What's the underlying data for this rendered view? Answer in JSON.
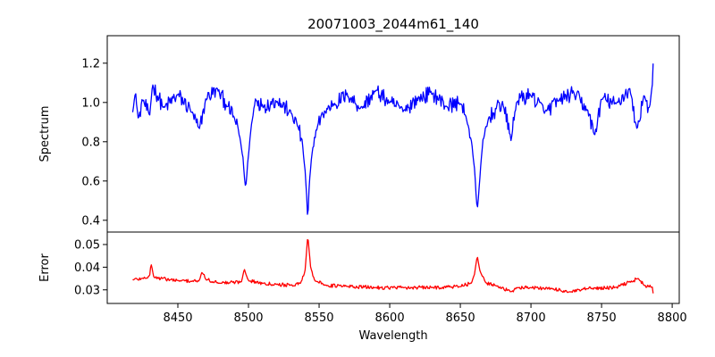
{
  "chart_data": [
    {
      "type": "line",
      "title": "20071003_2044m61_140",
      "ylabel": "Spectrum",
      "xlim": [
        8400,
        8805
      ],
      "ylim": [
        0.34,
        1.34
      ],
      "yticks": [
        0.4,
        0.6,
        0.8,
        1.0,
        1.2
      ],
      "ytick_labels": [
        "0.4",
        "0.6",
        "0.8",
        "1.0",
        "1.2"
      ],
      "grid": false,
      "series": [
        {
          "color": "#0000ff",
          "baseline": 1.0,
          "noise": 0.04,
          "x_range": [
            8418,
            8787
          ],
          "points": [
            [
              8418,
              0.96
            ],
            [
              8420,
              1.05
            ],
            [
              8422,
              0.91
            ],
            [
              8425,
              1.02
            ],
            [
              8430,
              0.93
            ],
            [
              8432,
              1.09
            ],
            [
              8440,
              0.97
            ],
            [
              8450,
              1.04
            ],
            [
              8460,
              0.95
            ],
            [
              8465,
              0.86
            ],
            [
              8470,
              1.02
            ],
            [
              8478,
              1.07
            ],
            [
              8485,
              0.98
            ],
            [
              8490,
              0.92
            ],
            [
              8494,
              0.82
            ],
            [
              8496,
              0.72
            ],
            [
              8498,
              0.555
            ],
            [
              8500,
              0.74
            ],
            [
              8502,
              0.88
            ],
            [
              8505,
              1.02
            ],
            [
              8510,
              0.98
            ],
            [
              8520,
              1.01
            ],
            [
              8530,
              0.95
            ],
            [
              8535,
              0.88
            ],
            [
              8538,
              0.8
            ],
            [
              8540,
              0.66
            ],
            [
              8541,
              0.55
            ],
            [
              8542,
              0.39
            ],
            [
              8543,
              0.58
            ],
            [
              8545,
              0.74
            ],
            [
              8548,
              0.86
            ],
            [
              8552,
              0.94
            ],
            [
              8560,
              0.99
            ],
            [
              8570,
              1.04
            ],
            [
              8580,
              0.97
            ],
            [
              8590,
              1.06
            ],
            [
              8600,
              1.0
            ],
            [
              8610,
              0.96
            ],
            [
              8620,
              1.02
            ],
            [
              8630,
              1.05
            ],
            [
              8640,
              0.98
            ],
            [
              8650,
              1.0
            ],
            [
              8655,
              0.9
            ],
            [
              8658,
              0.8
            ],
            [
              8660,
              0.66
            ],
            [
              8662,
              0.44
            ],
            [
              8664,
              0.64
            ],
            [
              8666,
              0.8
            ],
            [
              8670,
              0.92
            ],
            [
              8680,
              1.0
            ],
            [
              8686,
              0.81
            ],
            [
              8690,
              1.01
            ],
            [
              8700,
              1.04
            ],
            [
              8710,
              0.95
            ],
            [
              8720,
              1.01
            ],
            [
              8730,
              1.05
            ],
            [
              8740,
              0.96
            ],
            [
              8745,
              0.83
            ],
            [
              8750,
              1.02
            ],
            [
              8760,
              0.99
            ],
            [
              8770,
              1.07
            ],
            [
              8775,
              0.86
            ],
            [
              8780,
              1.04
            ],
            [
              8784,
              0.96
            ],
            [
              8786,
              1.1
            ],
            [
              8787,
              1.29
            ]
          ]
        }
      ]
    },
    {
      "type": "line",
      "xlabel": "Wavelength",
      "ylabel": "Error",
      "xlim": [
        8400,
        8805
      ],
      "ylim": [
        0.024,
        0.0555
      ],
      "xticks": [
        8450,
        8500,
        8550,
        8600,
        8650,
        8700,
        8750,
        8800
      ],
      "xtick_labels": [
        "8450",
        "8500",
        "8550",
        "8600",
        "8650",
        "8700",
        "8750",
        "8800"
      ],
      "yticks": [
        0.03,
        0.04,
        0.05
      ],
      "ytick_labels": [
        "0.03",
        "0.04",
        "0.05"
      ],
      "grid": false,
      "series": [
        {
          "color": "#ff0000",
          "noise": 0.0008,
          "x_range": [
            8418,
            8787
          ],
          "points": [
            [
              8418,
              0.0345
            ],
            [
              8425,
              0.035
            ],
            [
              8430,
              0.036
            ],
            [
              8431,
              0.0418
            ],
            [
              8433,
              0.0355
            ],
            [
              8450,
              0.034
            ],
            [
              8465,
              0.0338
            ],
            [
              8467,
              0.0378
            ],
            [
              8470,
              0.0345
            ],
            [
              8480,
              0.033
            ],
            [
              8495,
              0.0335
            ],
            [
              8497,
              0.0392
            ],
            [
              8500,
              0.034
            ],
            [
              8510,
              0.033
            ],
            [
              8520,
              0.0325
            ],
            [
              8530,
              0.032
            ],
            [
              8537,
              0.033
            ],
            [
              8540,
              0.038
            ],
            [
              8542,
              0.054
            ],
            [
              8544,
              0.04
            ],
            [
              8547,
              0.034
            ],
            [
              8555,
              0.032
            ],
            [
              8570,
              0.0315
            ],
            [
              8590,
              0.031
            ],
            [
              8610,
              0.031
            ],
            [
              8630,
              0.031
            ],
            [
              8650,
              0.0315
            ],
            [
              8658,
              0.033
            ],
            [
              8660,
              0.037
            ],
            [
              8662,
              0.0448
            ],
            [
              8664,
              0.038
            ],
            [
              8668,
              0.033
            ],
            [
              8675,
              0.032
            ],
            [
              8686,
              0.029
            ],
            [
              8690,
              0.031
            ],
            [
              8700,
              0.031
            ],
            [
              8715,
              0.0305
            ],
            [
              8728,
              0.029
            ],
            [
              8740,
              0.0305
            ],
            [
              8760,
              0.031
            ],
            [
              8776,
              0.035
            ],
            [
              8780,
              0.032
            ],
            [
              8786,
              0.031
            ],
            [
              8787,
              0.026
            ]
          ]
        }
      ]
    }
  ]
}
